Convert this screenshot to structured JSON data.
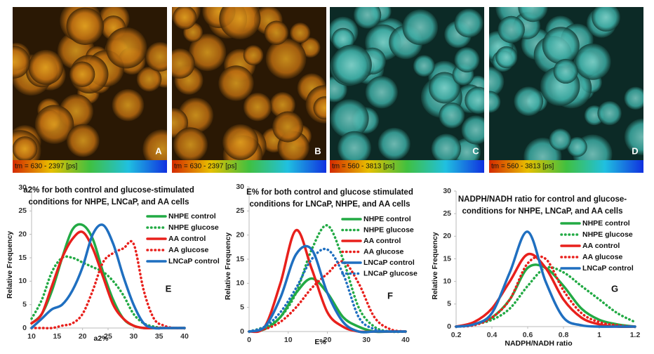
{
  "panels": [
    {
      "label": "A",
      "scale": "tm = 630 - 2397 [ps]"
    },
    {
      "label": "B",
      "scale": "tm = 630 - 2397 [ps]"
    },
    {
      "label": "C",
      "scale": "tm = 560 - 3813 [ps]"
    },
    {
      "label": "D",
      "scale": "tm = 560 - 3813 [ps]"
    }
  ],
  "chart_data": [
    {
      "type": "line",
      "title": [
        "a2% for both control and glucose-stimulated",
        "conditions for NHPE, LNCaP, and AA cells"
      ],
      "panel_label": "E",
      "x_label": "a2%",
      "y_label": "Relative Frequency",
      "x": [
        10,
        12,
        14,
        16,
        18,
        20,
        22,
        24,
        26,
        28,
        30,
        32,
        34,
        36,
        38,
        40
      ],
      "xlim": [
        10,
        40
      ],
      "xticks": [
        10,
        15,
        20,
        25,
        30,
        35,
        40
      ],
      "ylim": [
        0,
        30
      ],
      "yticks": [
        0,
        5,
        10,
        15,
        20,
        25,
        30
      ],
      "series": [
        {
          "name": "NHPE control",
          "color": "#22aa44",
          "style": "solid",
          "values": [
            1,
            3,
            8,
            15,
            21,
            22,
            19,
            12,
            6,
            2,
            0.5,
            0,
            0,
            0,
            0,
            0
          ]
        },
        {
          "name": "NHPE glucose",
          "color": "#22aa44",
          "style": "dotted",
          "values": [
            2,
            6,
            12,
            15,
            15,
            14,
            13,
            12,
            10,
            7,
            3,
            1,
            0.3,
            0,
            0,
            0
          ]
        },
        {
          "name": "AA control",
          "color": "#e8201c",
          "style": "solid",
          "values": [
            1,
            3,
            9,
            15,
            19,
            20.5,
            17,
            11,
            5,
            2,
            0.5,
            0,
            0,
            0,
            0,
            0
          ]
        },
        {
          "name": "AA glucose",
          "color": "#e8201c",
          "style": "dotted",
          "values": [
            0,
            0,
            0,
            0.5,
            1,
            3,
            8,
            14,
            16,
            17,
            18,
            8,
            2,
            0.5,
            0,
            0
          ]
        },
        {
          "name": "LNCaP control",
          "color": "#1f6fc0",
          "style": "solid",
          "values": [
            0,
            2,
            4,
            5,
            8,
            13,
            20,
            22,
            18,
            11,
            5,
            1,
            0,
            0,
            0,
            0
          ]
        }
      ]
    },
    {
      "type": "line",
      "title": [
        "E% for both control and glucose stimulated",
        "conditions for LNCaP, NHPE, and AA cells"
      ],
      "panel_label": "F",
      "x_label": "E%",
      "y_label": "Relative Frequency",
      "x": [
        0,
        4,
        8,
        12,
        16,
        20,
        24,
        28,
        32,
        36,
        40
      ],
      "xlim": [
        0,
        40
      ],
      "xticks": [
        0,
        10,
        20,
        30,
        40
      ],
      "ylim": [
        0,
        30
      ],
      "yticks": [
        0,
        5,
        10,
        15,
        20,
        25,
        30
      ],
      "series": [
        {
          "name": "NHPE control",
          "color": "#22aa44",
          "style": "solid",
          "values": [
            0,
            0.5,
            3,
            8,
            11,
            8,
            3,
            1,
            0,
            0,
            0
          ]
        },
        {
          "name": "NHPE glucose",
          "color": "#22aa44",
          "style": "dotted",
          "values": [
            0,
            1,
            3,
            8,
            17,
            22,
            15,
            5,
            1,
            0,
            0
          ]
        },
        {
          "name": "AA control",
          "color": "#e8201c",
          "style": "solid",
          "values": [
            0,
            1,
            10,
            21,
            13,
            4,
            1,
            0,
            0,
            0,
            0
          ]
        },
        {
          "name": "AA glucose",
          "color": "#e8201c",
          "style": "dotted",
          "values": [
            0,
            0.5,
            2,
            5,
            9,
            12,
            14.5,
            10,
            3,
            0.5,
            0
          ]
        },
        {
          "name": "LNCaP control",
          "color": "#1f6fc0",
          "style": "solid",
          "values": [
            0,
            1,
            7,
            16,
            17,
            8,
            2,
            0,
            0,
            0,
            0
          ]
        },
        {
          "name": "LNCaP glucose",
          "color": "#1f6fc0",
          "style": "dotted",
          "values": [
            0,
            1,
            4,
            9,
            15,
            17,
            12,
            3,
            0.5,
            0,
            0
          ]
        }
      ]
    },
    {
      "type": "line",
      "title": [
        "NADPH/NADH ratio for control and glucose-",
        "conditions for NHPE, LNCaP, and AA cells"
      ],
      "panel_label": "G",
      "x_label": "NADPH/NADH ratio",
      "y_label": "Relative Frequency",
      "x": [
        0.2,
        0.3,
        0.4,
        0.5,
        0.6,
        0.7,
        0.8,
        0.9,
        1.0,
        1.1,
        1.2
      ],
      "xlim": [
        0.2,
        1.2
      ],
      "xticks": [
        0.2,
        0.4,
        0.6,
        0.8,
        1,
        1.2
      ],
      "ylim": [
        0,
        30
      ],
      "yticks": [
        0,
        5,
        10,
        15,
        20,
        25,
        30
      ],
      "series": [
        {
          "name": "NHPE control",
          "color": "#22aa44",
          "style": "solid",
          "values": [
            0,
            0.5,
            2,
            6,
            13,
            13,
            9,
            4,
            1.5,
            0.5,
            0
          ]
        },
        {
          "name": "NHPE glucose",
          "color": "#22aa44",
          "style": "dotted",
          "values": [
            0,
            0.5,
            1.5,
            4,
            9,
            13,
            12,
            9,
            6,
            3,
            1
          ]
        },
        {
          "name": "AA control",
          "color": "#e8201c",
          "style": "solid",
          "values": [
            0,
            1,
            4,
            10,
            16,
            13,
            6,
            2,
            0.5,
            0,
            0
          ]
        },
        {
          "name": "AA glucose",
          "color": "#e8201c",
          "style": "dotted",
          "values": [
            0,
            0.3,
            2,
            6,
            14,
            15,
            8,
            3,
            1,
            0.3,
            0
          ]
        },
        {
          "name": "LNCaP control",
          "color": "#1f6fc0",
          "style": "solid",
          "values": [
            0,
            0.5,
            3,
            12,
            21,
            10,
            2,
            0.3,
            0,
            0,
            0
          ]
        }
      ]
    }
  ]
}
